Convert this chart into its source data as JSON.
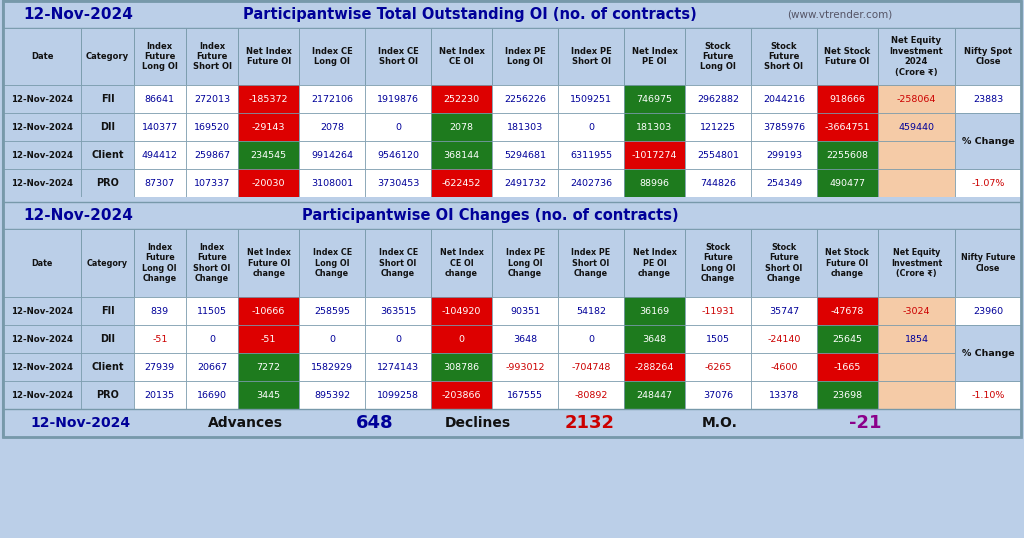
{
  "title_date": "12-Nov-2024",
  "title1": "Participantwise Total Outstanding OI (no. of contracts)",
  "title1_website": "(www.vtrender.com)",
  "title2": "Participantwise OI Changes (no. of contracts)",
  "header1": [
    "Date",
    "Category",
    "Index\nFuture\nLong OI",
    "Index\nFuture\nShort OI",
    "Net Index\nFuture OI",
    "Index CE\nLong OI",
    "Index CE\nShort OI",
    "Net Index\nCE OI",
    "Index PE\nLong OI",
    "Index PE\nShort OI",
    "Net Index\nPE OI",
    "Stock\nFuture\nLong OI",
    "Stock\nFuture\nShort OI",
    "Net Stock\nFuture OI",
    "Net Equity\nInvestment\n2024\n(Crore ₹)",
    "Nifty Spot\nClose"
  ],
  "header2": [
    "Date",
    "Category",
    "Index\nFuture\nLong OI\nChange",
    "Index\nFuture\nShort OI\nChange",
    "Net Index\nFuture OI\nchange",
    "Index CE\nLong OI\nChange",
    "Index CE\nShort OI\nChange",
    "Net Index\nCE OI\nchange",
    "Index PE\nLong OI\nChange",
    "Index PE\nShort OI\nChange",
    "Net Index\nPE OI\nchange",
    "Stock\nFuture\nLong OI\nChange",
    "Stock\nFuture\nShort OI\nChange",
    "Net Stock\nFuture OI\nchange",
    "Net Equity\nInvestment\n(Crore ₹)",
    "Nifty Future\nClose"
  ],
  "table1_rows": [
    [
      "12-Nov-2024",
      "FII",
      "86641",
      "272013",
      "-185372",
      "2172106",
      "1919876",
      "252230",
      "2256226",
      "1509251",
      "746975",
      "2962882",
      "2044216",
      "918666",
      "-258064",
      "23883"
    ],
    [
      "12-Nov-2024",
      "DII",
      "140377",
      "169520",
      "-29143",
      "2078",
      "0",
      "2078",
      "181303",
      "0",
      "181303",
      "121225",
      "3785976",
      "-3664751",
      "459440",
      ""
    ],
    [
      "12-Nov-2024",
      "Client",
      "494412",
      "259867",
      "234545",
      "9914264",
      "9546120",
      "368144",
      "5294681",
      "6311955",
      "-1017274",
      "2554801",
      "299193",
      "2255608",
      "",
      ""
    ],
    [
      "12-Nov-2024",
      "PRO",
      "87307",
      "107337",
      "-20030",
      "3108001",
      "3730453",
      "-622452",
      "2491732",
      "2402736",
      "88996",
      "744826",
      "254349",
      "490477",
      "",
      "-1.07%"
    ]
  ],
  "table2_rows": [
    [
      "12-Nov-2024",
      "FII",
      "839",
      "11505",
      "-10666",
      "258595",
      "363515",
      "-104920",
      "90351",
      "54182",
      "36169",
      "-11931",
      "35747",
      "-47678",
      "-3024",
      "23960"
    ],
    [
      "12-Nov-2024",
      "DII",
      "-51",
      "0",
      "-51",
      "0",
      "0",
      "0",
      "3648",
      "0",
      "3648",
      "1505",
      "-24140",
      "25645",
      "1854",
      ""
    ],
    [
      "12-Nov-2024",
      "Client",
      "27939",
      "20667",
      "7272",
      "1582929",
      "1274143",
      "308786",
      "-993012",
      "-704748",
      "-288264",
      "-6265",
      "-4600",
      "-1665",
      "",
      ""
    ],
    [
      "12-Nov-2024",
      "PRO",
      "20135",
      "16690",
      "3445",
      "895392",
      "1099258",
      "-203866",
      "167555",
      "-80892",
      "248447",
      "37076",
      "13378",
      "23698",
      "",
      "-1.10%"
    ]
  ],
  "cell_colors_t1": {
    "0_4": "#DD0000",
    "1_4": "#DD0000",
    "2_4": "#1E7B1E",
    "3_4": "#DD0000",
    "0_7": "#DD0000",
    "1_7": "#1E7B1E",
    "2_7": "#1E7B1E",
    "3_7": "#DD0000",
    "0_10": "#1E7B1E",
    "1_10": "#1E7B1E",
    "2_10": "#DD0000",
    "3_10": "#1E7B1E",
    "0_13": "#DD0000",
    "1_13": "#DD0000",
    "2_13": "#1E7B1E",
    "3_13": "#1E7B1E",
    "0_14": "#F5CBA7",
    "1_14": "#F5CBA7",
    "2_14": "#F5CBA7",
    "3_14": "#F5CBA7"
  },
  "cell_colors_t2": {
    "0_4": "#DD0000",
    "1_4": "#DD0000",
    "2_4": "#1E7B1E",
    "3_4": "#1E7B1E",
    "0_7": "#DD0000",
    "1_7": "#DD0000",
    "2_7": "#1E7B1E",
    "3_7": "#DD0000",
    "0_10": "#1E7B1E",
    "1_10": "#1E7B1E",
    "2_10": "#DD0000",
    "3_10": "#1E7B1E",
    "0_13": "#DD0000",
    "1_13": "#1E7B1E",
    "2_13": "#DD0000",
    "3_13": "#1E7B1E",
    "0_14": "#F5CBA7",
    "1_14": "#F5CBA7",
    "2_14": "#F5CBA7",
    "3_14": "#F5CBA7"
  },
  "header_bg": "#BBCFE8",
  "row_bg": "#FFFFFF",
  "title_bg": "#BBCFE8",
  "footer_bg": "#BBCFE8",
  "border_color": "#7799AA",
  "neg_color": "#CC0000",
  "pos_color": "#000099",
  "default_text": "#000099",
  "white_text": "#FFFFFF",
  "black_text": "#111111",
  "pct_neg_color": "#CC0000",
  "purple_color": "#8B008B",
  "footer_date": "12-Nov-2024",
  "footer_advances": "648",
  "footer_declines": "2132",
  "footer_mo": "-21",
  "pct_change_label": "% Change",
  "pct_t1": "-1.07%",
  "pct_t2": "-1.10%"
}
